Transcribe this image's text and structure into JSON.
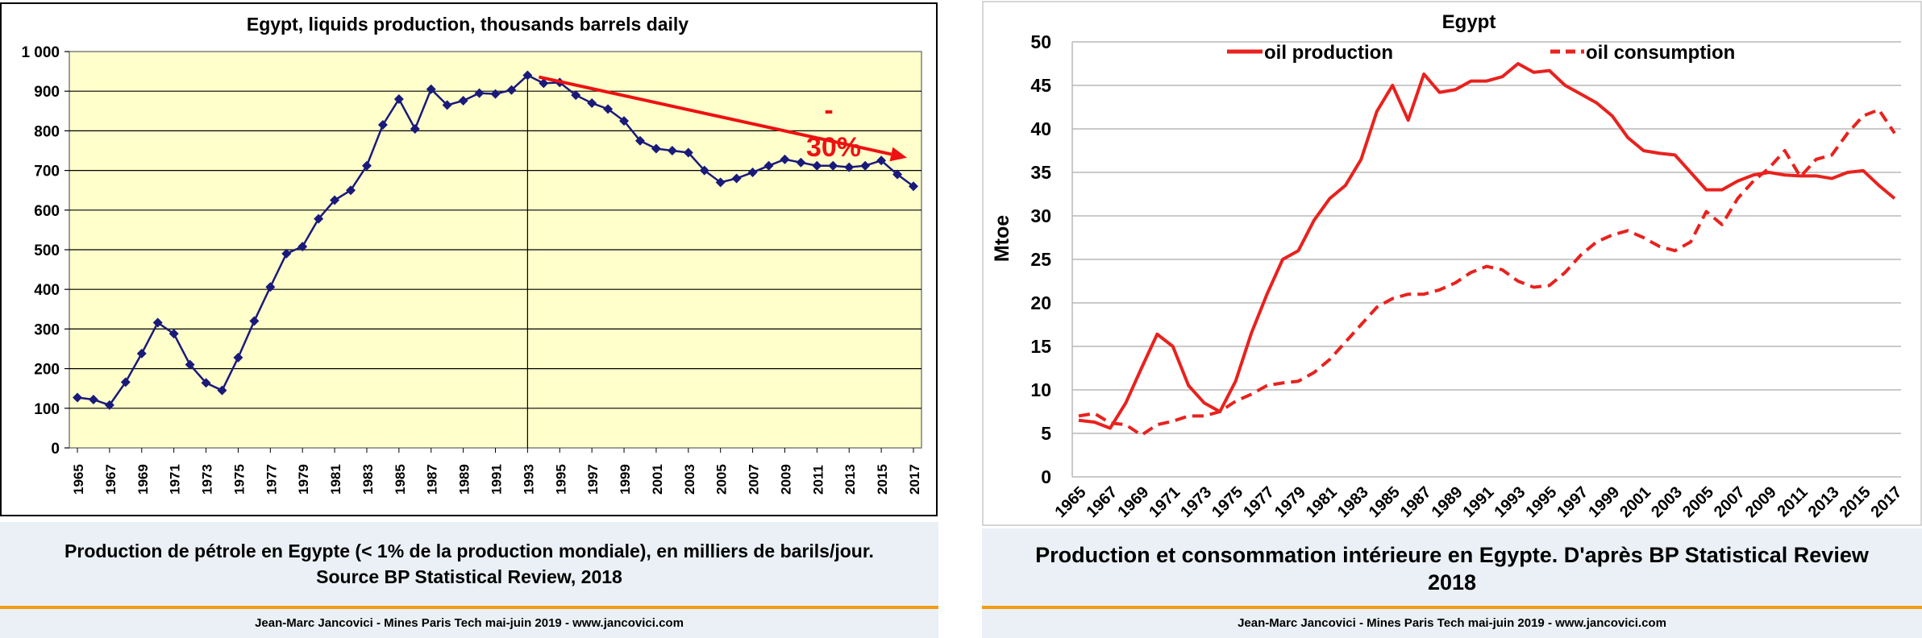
{
  "left_panel": {
    "caption": "Production de pétrole en Egypte (< 1% de la production mondiale), en milliers de barils/jour. Source BP Statistical Review, 2018",
    "footer": "Jean-Marc Jancovici - Mines Paris Tech mai-juin 2019 - www.jancovici.com",
    "annotation_dash": "-",
    "annotation_pct": "30%",
    "colors": {
      "plot_bg": "#ffffcc",
      "series": "#1a1a7a",
      "arrow": "#ee1111"
    }
  },
  "right_panel": {
    "caption": "Production et consommation intérieure en Egypte. D'après BP Statistical Review 2018",
    "footer": "Jean-Marc Jancovici - Mines Paris Tech mai-juin 2019 - www.jancovici.com",
    "colors": {
      "series": "#e8221e",
      "grid": "#b8b8b8"
    }
  },
  "chart_data": [
    {
      "type": "line",
      "title": "Egypt, liquids production, thousands barrels daily",
      "xlabel": "",
      "ylabel": "",
      "x": [
        1965,
        1966,
        1967,
        1968,
        1969,
        1970,
        1971,
        1972,
        1973,
        1974,
        1975,
        1976,
        1977,
        1978,
        1979,
        1980,
        1981,
        1982,
        1983,
        1984,
        1985,
        1986,
        1987,
        1988,
        1989,
        1990,
        1991,
        1992,
        1993,
        1994,
        1995,
        1996,
        1997,
        1998,
        1999,
        2000,
        2001,
        2002,
        2003,
        2004,
        2005,
        2006,
        2007,
        2008,
        2009,
        2010,
        2011,
        2012,
        2013,
        2014,
        2015,
        2016,
        2017
      ],
      "x_tick_labels": [
        "1965",
        "1967",
        "1969",
        "1971",
        "1973",
        "1975",
        "1977",
        "1979",
        "1981",
        "1983",
        "1985",
        "1987",
        "1989",
        "1991",
        "1993",
        "1995",
        "1997",
        "1999",
        "2001",
        "2003",
        "2005",
        "2007",
        "2009",
        "2011",
        "2013",
        "2015",
        "2017"
      ],
      "y_tick_labels": [
        "0",
        "100",
        "200",
        "300",
        "400",
        "500",
        "600",
        "700",
        "800",
        "900",
        "1 000"
      ],
      "ylim": [
        0,
        1000
      ],
      "grid": true,
      "series": [
        {
          "values": [
            127,
            122,
            108,
            166,
            238,
            316,
            288,
            210,
            164,
            145,
            228,
            320,
            406,
            490,
            508,
            578,
            625,
            650,
            712,
            815,
            880,
            805,
            905,
            865,
            876,
            895,
            893,
            903,
            940,
            920,
            922,
            890,
            870,
            855,
            825,
            775,
            755,
            750,
            745,
            700,
            670,
            680,
            695,
            712,
            728,
            720,
            712,
            712,
            708,
            712,
            725,
            690,
            660
          ]
        }
      ],
      "vertical_marker_x": 1993,
      "annotation": {
        "text": "-30%",
        "arrow_from": [
          1993,
          940
        ],
        "arrow_to": [
          2017,
          720
        ]
      }
    },
    {
      "type": "line",
      "title": "Egypt",
      "xlabel": "",
      "ylabel": "Mtoe",
      "x": [
        1965,
        1966,
        1967,
        1968,
        1969,
        1970,
        1971,
        1972,
        1973,
        1974,
        1975,
        1976,
        1977,
        1978,
        1979,
        1980,
        1981,
        1982,
        1983,
        1984,
        1985,
        1986,
        1987,
        1988,
        1989,
        1990,
        1991,
        1992,
        1993,
        1994,
        1995,
        1996,
        1997,
        1998,
        1999,
        2000,
        2001,
        2002,
        2003,
        2004,
        2005,
        2006,
        2007,
        2008,
        2009,
        2010,
        2011,
        2012,
        2013,
        2014,
        2015,
        2016,
        2017
      ],
      "x_tick_labels": [
        "1965",
        "1967",
        "1969",
        "1971",
        "1973",
        "1975",
        "1977",
        "1979",
        "1981",
        "1983",
        "1985",
        "1987",
        "1989",
        "1991",
        "1993",
        "1995",
        "1997",
        "1999",
        "2001",
        "2003",
        "2005",
        "2007",
        "2009",
        "2011",
        "2013",
        "2015",
        "2017"
      ],
      "y_tick_labels": [
        "0",
        "5",
        "10",
        "15",
        "20",
        "25",
        "30",
        "35",
        "40",
        "45",
        "50"
      ],
      "ylim": [
        0,
        50
      ],
      "grid": true,
      "legend_position": "top",
      "series": [
        {
          "name": "oil production",
          "style": "solid",
          "values": [
            6.5,
            6.3,
            5.6,
            8.5,
            12.5,
            16.4,
            15,
            10.5,
            8.5,
            7.5,
            11,
            16.5,
            21,
            25,
            26,
            29.5,
            32,
            33.5,
            36.5,
            42,
            45,
            41,
            46.3,
            44.2,
            44.5,
            45.5,
            45.5,
            46,
            47.5,
            46.5,
            46.7,
            45,
            44,
            43,
            41.5,
            39,
            37.5,
            37.2,
            37,
            35,
            33,
            33,
            34,
            34.7,
            35,
            34.7,
            34.6,
            34.6,
            34.3,
            35,
            35.2,
            33.5,
            32
          ]
        },
        {
          "name": "oil consumption",
          "style": "dashed",
          "values": [
            7,
            7.3,
            6.2,
            6,
            4.8,
            6,
            6.4,
            7,
            7,
            7.5,
            8.7,
            9.5,
            10.5,
            10.8,
            11,
            12,
            13.5,
            15.5,
            17.5,
            19.5,
            20.5,
            21,
            21,
            21.5,
            22.3,
            23.5,
            24.2,
            23.8,
            22.5,
            21.8,
            22,
            23.5,
            25.5,
            27,
            27.8,
            28.3,
            27.5,
            26.5,
            26,
            27,
            30.5,
            29,
            32,
            34,
            35.5,
            37.5,
            34.5,
            36.5,
            37,
            39.5,
            41.5,
            42.2,
            39.5
          ]
        }
      ]
    }
  ]
}
